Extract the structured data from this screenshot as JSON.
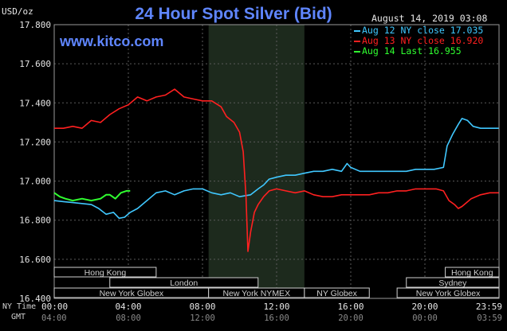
{
  "header": {
    "title": "24 Hour Spot Silver (Bid)",
    "unit": "USD/oz",
    "site": "www.kitco.com",
    "date": "August 14, 2019 03:08"
  },
  "bottom_labels": {
    "ny_time": "NY Time",
    "gmt": "GMT"
  },
  "colors": {
    "title": "#5f86ff",
    "aug12": "#40c8ff",
    "aug13": "#ff2020",
    "aug14": "#30ff30",
    "shade": "#1d2a1d",
    "grid": "#5a5a5a"
  },
  "chart_data": {
    "type": "line",
    "title": "24 Hour Spot Silver (Bid)",
    "ylabel": "USD/oz",
    "ylim": [
      16.4,
      17.8
    ],
    "y_ticks": [
      "17.800",
      "17.600",
      "17.400",
      "17.200",
      "17.000",
      "16.800",
      "16.600",
      "16.400"
    ],
    "x_ticks_ny": [
      "00:00",
      "04:00",
      "08:00",
      "12:00",
      "16:00",
      "20:00",
      "23:59"
    ],
    "x_ticks_gmt": [
      "04:00",
      "08:00",
      "12:00",
      "16:00",
      "20:00",
      "00:00",
      "03:59"
    ],
    "x_tick_hours": [
      0,
      4,
      8,
      12,
      16,
      20,
      23.983
    ],
    "grid": true,
    "shaded_hours": [
      8.33,
      13.5
    ],
    "series": [
      {
        "name": "Aug 12 NY close 17.035",
        "color": "#40c8ff",
        "points": [
          [
            0,
            16.9
          ],
          [
            0.5,
            16.895
          ],
          [
            1,
            16.89
          ],
          [
            1.5,
            16.885
          ],
          [
            2,
            16.88
          ],
          [
            2.4,
            16.86
          ],
          [
            2.8,
            16.83
          ],
          [
            3.2,
            16.84
          ],
          [
            3.5,
            16.81
          ],
          [
            3.8,
            16.815
          ],
          [
            4.1,
            16.84
          ],
          [
            4.5,
            16.86
          ],
          [
            5,
            16.9
          ],
          [
            5.5,
            16.94
          ],
          [
            6,
            16.95
          ],
          [
            6.5,
            16.93
          ],
          [
            7,
            16.95
          ],
          [
            7.5,
            16.96
          ],
          [
            8,
            16.96
          ],
          [
            8.5,
            16.94
          ],
          [
            9,
            16.93
          ],
          [
            9.5,
            16.94
          ],
          [
            10,
            16.92
          ],
          [
            10.6,
            16.93
          ],
          [
            11,
            16.96
          ],
          [
            11.3,
            16.98
          ],
          [
            11.6,
            17.01
          ],
          [
            12,
            17.02
          ],
          [
            12.5,
            17.03
          ],
          [
            13,
            17.03
          ],
          [
            13.5,
            17.04
          ],
          [
            14,
            17.05
          ],
          [
            14.5,
            17.05
          ],
          [
            15,
            17.06
          ],
          [
            15.5,
            17.05
          ],
          [
            15.8,
            17.09
          ],
          [
            16,
            17.07
          ],
          [
            16.5,
            17.05
          ],
          [
            17,
            17.05
          ],
          [
            17.5,
            17.05
          ],
          [
            18,
            17.05
          ],
          [
            18.5,
            17.05
          ],
          [
            19,
            17.05
          ],
          [
            19.5,
            17.06
          ],
          [
            20,
            17.06
          ],
          [
            20.5,
            17.06
          ],
          [
            21,
            17.07
          ],
          [
            21.2,
            17.18
          ],
          [
            21.5,
            17.24
          ],
          [
            21.8,
            17.29
          ],
          [
            22,
            17.32
          ],
          [
            22.3,
            17.31
          ],
          [
            22.6,
            17.28
          ],
          [
            23,
            17.27
          ],
          [
            23.5,
            17.27
          ],
          [
            23.983,
            17.27
          ]
        ]
      },
      {
        "name": "Aug 13 NY close 16.920",
        "color": "#ff2020",
        "points": [
          [
            0,
            17.27
          ],
          [
            0.5,
            17.27
          ],
          [
            1,
            17.28
          ],
          [
            1.5,
            17.27
          ],
          [
            2,
            17.31
          ],
          [
            2.5,
            17.3
          ],
          [
            3,
            17.34
          ],
          [
            3.5,
            17.37
          ],
          [
            4,
            17.39
          ],
          [
            4.5,
            17.43
          ],
          [
            5,
            17.41
          ],
          [
            5.5,
            17.43
          ],
          [
            6,
            17.44
          ],
          [
            6.5,
            17.47
          ],
          [
            7,
            17.43
          ],
          [
            7.5,
            17.42
          ],
          [
            8,
            17.41
          ],
          [
            8.5,
            17.41
          ],
          [
            9,
            17.38
          ],
          [
            9.3,
            17.33
          ],
          [
            9.7,
            17.3
          ],
          [
            10,
            17.25
          ],
          [
            10.2,
            17.15
          ],
          [
            10.35,
            16.92
          ],
          [
            10.45,
            16.64
          ],
          [
            10.6,
            16.74
          ],
          [
            10.8,
            16.84
          ],
          [
            11,
            16.88
          ],
          [
            11.3,
            16.92
          ],
          [
            11.6,
            16.95
          ],
          [
            12,
            16.96
          ],
          [
            12.5,
            16.95
          ],
          [
            13,
            16.94
          ],
          [
            13.5,
            16.95
          ],
          [
            14,
            16.93
          ],
          [
            14.5,
            16.92
          ],
          [
            15,
            16.92
          ],
          [
            15.5,
            16.93
          ],
          [
            16,
            16.93
          ],
          [
            16.5,
            16.93
          ],
          [
            17,
            16.93
          ],
          [
            17.5,
            16.94
          ],
          [
            18,
            16.94
          ],
          [
            18.5,
            16.95
          ],
          [
            19,
            16.95
          ],
          [
            19.5,
            16.96
          ],
          [
            20,
            16.96
          ],
          [
            20.3,
            16.96
          ],
          [
            20.6,
            16.96
          ],
          [
            21,
            16.95
          ],
          [
            21.3,
            16.9
          ],
          [
            21.6,
            16.88
          ],
          [
            21.8,
            16.86
          ],
          [
            22,
            16.87
          ],
          [
            22.5,
            16.91
          ],
          [
            23,
            16.93
          ],
          [
            23.5,
            16.94
          ],
          [
            23.983,
            16.94
          ]
        ]
      },
      {
        "name": "Aug 14 Last 16.955",
        "color": "#30ff30",
        "points": [
          [
            0,
            16.94
          ],
          [
            0.3,
            16.92
          ],
          [
            0.6,
            16.91
          ],
          [
            1,
            16.9
          ],
          [
            1.5,
            16.91
          ],
          [
            2,
            16.9
          ],
          [
            2.5,
            16.91
          ],
          [
            2.8,
            16.93
          ],
          [
            3,
            16.93
          ],
          [
            3.3,
            16.91
          ],
          [
            3.6,
            16.94
          ],
          [
            3.9,
            16.95
          ],
          [
            4.1,
            16.95
          ]
        ]
      }
    ],
    "market_sessions": [
      {
        "name": "Hong Kong",
        "row": 0,
        "start": 0,
        "end": 5.5
      },
      {
        "name": "Hong Kong",
        "row": 0,
        "start": 21.1,
        "end": 24
      },
      {
        "name": "London",
        "row": 1,
        "start": 3,
        "end": 11
      },
      {
        "name": "Sydney",
        "row": 1,
        "start": 19,
        "end": 24
      },
      {
        "name": "New York Globex",
        "row": 2,
        "start": 0,
        "end": 8.33
      },
      {
        "name": "New York NYMEX",
        "row": 2,
        "start": 8.33,
        "end": 13.5
      },
      {
        "name": "NY Globex",
        "row": 2,
        "start": 13.5,
        "end": 17
      },
      {
        "name": "New York Globex",
        "row": 2,
        "start": 18.5,
        "end": 24
      }
    ]
  }
}
